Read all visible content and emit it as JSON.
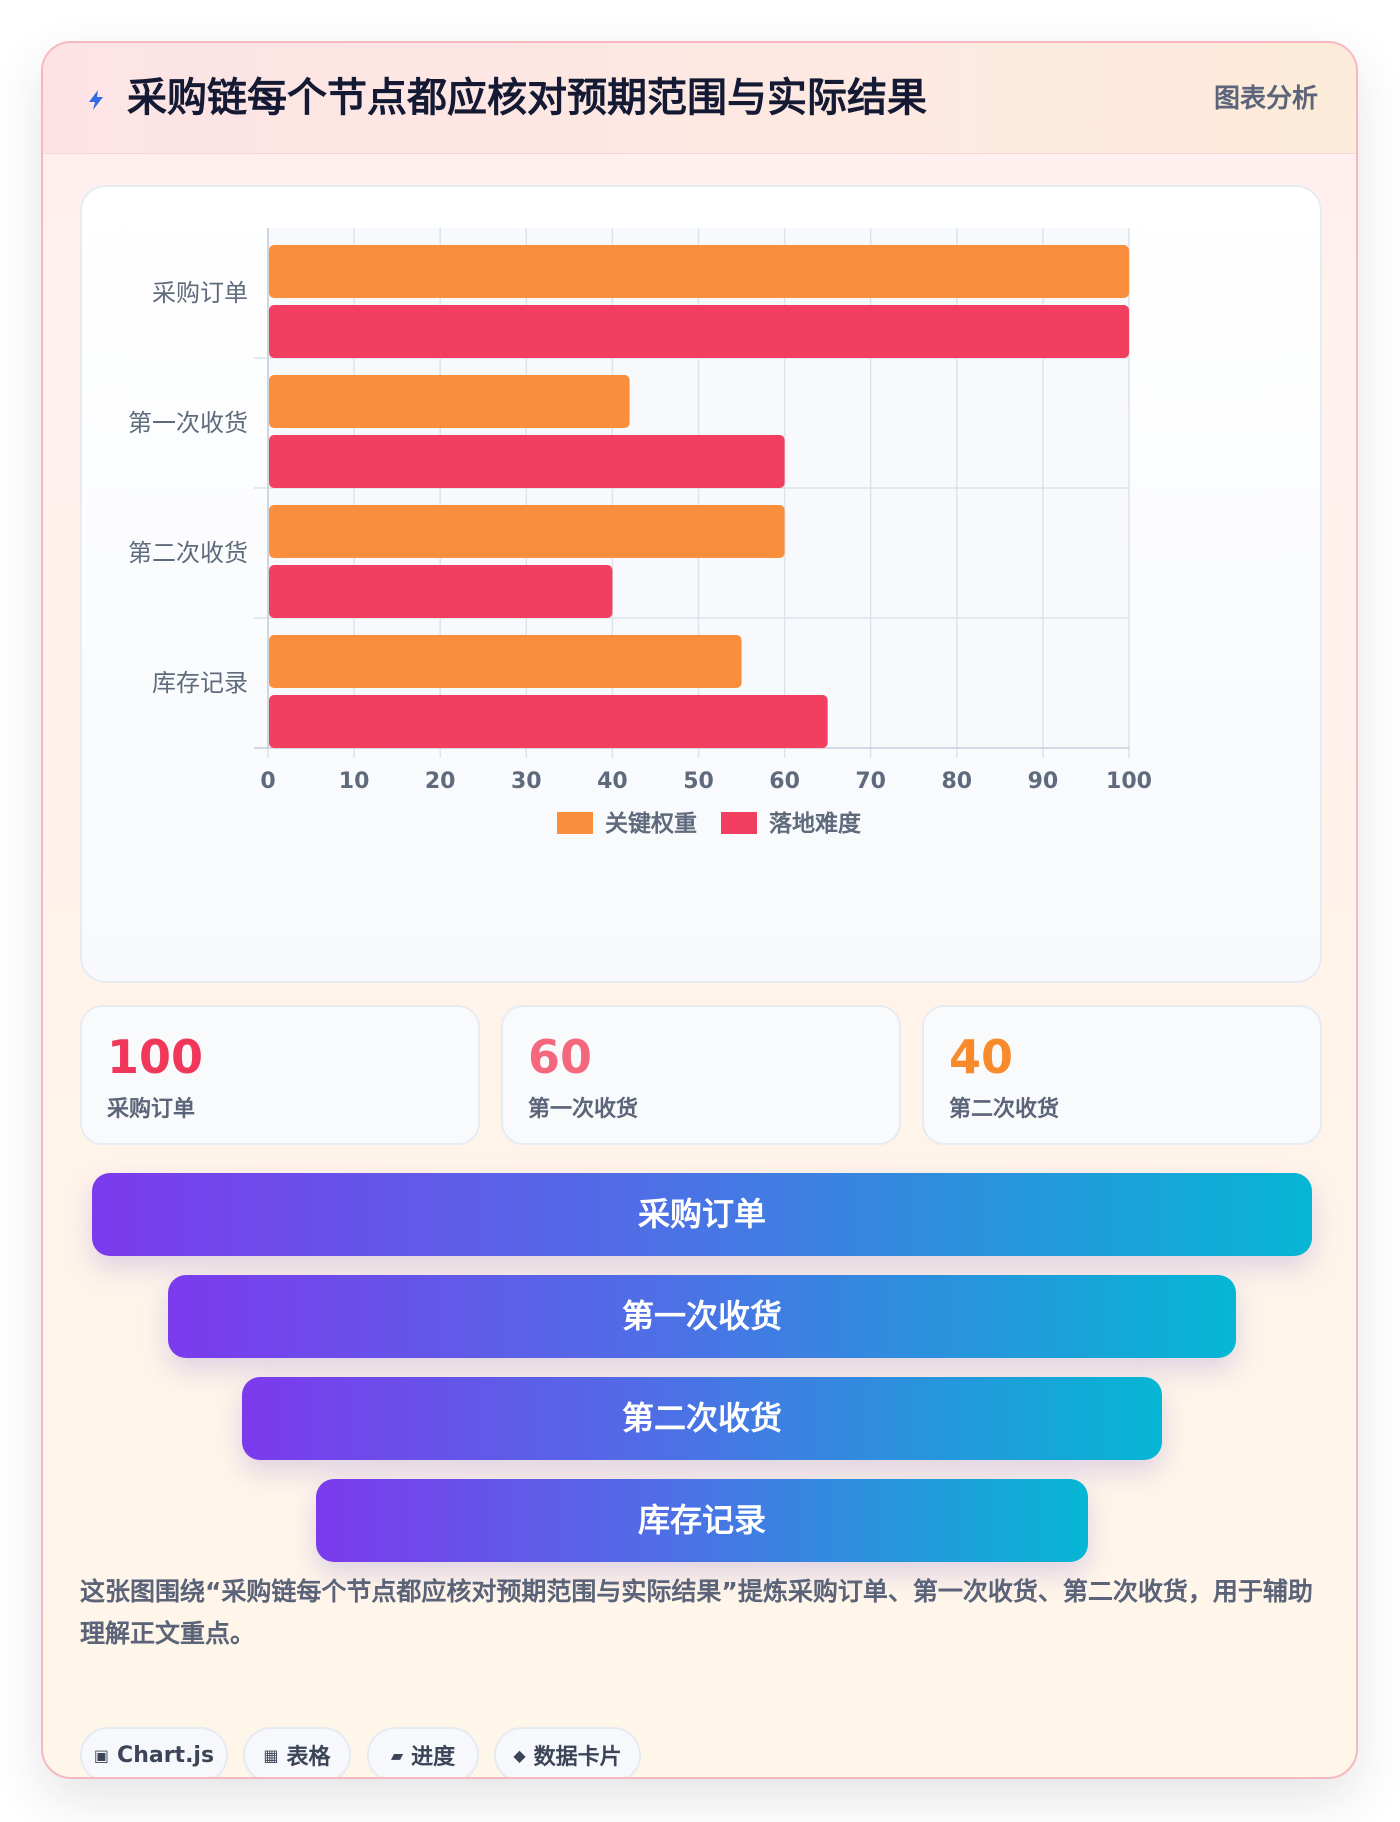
{
  "header": {
    "title": "采购链每个节点都应核对预期范围与实际结果",
    "tag": "图表分析"
  },
  "chart_data": {
    "type": "bar",
    "orientation": "horizontal",
    "categories": [
      "采购订单",
      "第一次收货",
      "第二次收货",
      "库存记录"
    ],
    "series": [
      {
        "name": "关键权重",
        "color": "#f98f3d",
        "values": [
          100,
          42,
          60,
          55
        ]
      },
      {
        "name": "落地难度",
        "color": "#f23f5f",
        "values": [
          100,
          60,
          40,
          65
        ]
      }
    ],
    "xlim": [
      0,
      100
    ],
    "x_ticks": [
      "0",
      "10",
      "20",
      "30",
      "40",
      "50",
      "60",
      "70",
      "80",
      "90",
      "100"
    ],
    "grid": true,
    "legend_position": "bottom"
  },
  "stats": [
    {
      "value": "100",
      "label": "采购订单",
      "color": "#f0375a"
    },
    {
      "value": "60",
      "label": "第一次收货",
      "color": "#f4687e"
    },
    {
      "value": "40",
      "label": "第二次收货",
      "color": "#f98a2c"
    }
  ],
  "funnel": [
    {
      "label": "采购订单"
    },
    {
      "label": "第一次收货"
    },
    {
      "label": "第二次收货"
    },
    {
      "label": "库存记录"
    }
  ],
  "description": "这张图围绕“采购链每个节点都应核对预期范围与实际结果”提炼采购订单、第一次收货、第二次收货，用于辅助理解正文重点。",
  "pills": [
    {
      "icon": "▣",
      "icon_name": "chart-icon",
      "label": "Chart.js"
    },
    {
      "icon": "▦",
      "icon_name": "table-icon",
      "label": "表格"
    },
    {
      "icon": "▰",
      "icon_name": "progress-icon",
      "label": "进度"
    },
    {
      "icon": "◆",
      "icon_name": "data-card-icon",
      "label": "数据卡片"
    }
  ]
}
